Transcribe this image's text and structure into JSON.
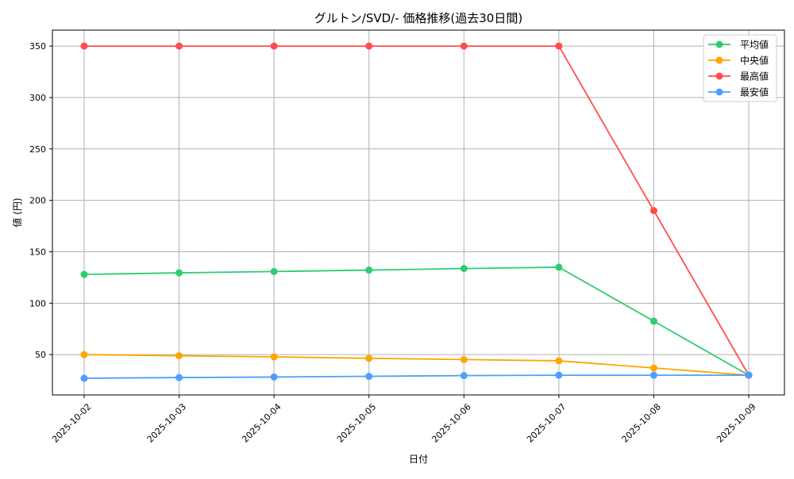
{
  "chart_data": {
    "type": "line",
    "title": "グルトン/SVD/- 価格推移(過去30日間)",
    "xlabel": "日付",
    "ylabel": "値 (円)",
    "categories": [
      "2025-10-02",
      "2025-10-03",
      "2025-10-04",
      "2025-10-05",
      "2025-10-06",
      "2025-10-07",
      "2025-10-08",
      "2025-10-09"
    ],
    "yticks": [
      50,
      100,
      150,
      200,
      250,
      300,
      350
    ],
    "ylim": [
      10.8,
      365.5
    ],
    "grid": true,
    "legend_position": "top-right",
    "series": [
      {
        "name": "平均値",
        "color": "#2ecc71",
        "values": [
          128,
          129.5,
          130.8,
          132.2,
          133.7,
          135,
          82.5,
          30
        ]
      },
      {
        "name": "中央値",
        "color": "#ffa500",
        "values": [
          50,
          48.9,
          47.8,
          46.4,
          45.2,
          44,
          37,
          30
        ]
      },
      {
        "name": "最高値",
        "color": "#ff4d4d",
        "values": [
          350,
          350,
          350,
          350,
          350,
          350,
          190,
          30
        ]
      },
      {
        "name": "最安値",
        "color": "#4d9fff",
        "values": [
          27,
          27.7,
          28.2,
          28.9,
          29.6,
          30,
          30,
          30
        ]
      }
    ]
  }
}
